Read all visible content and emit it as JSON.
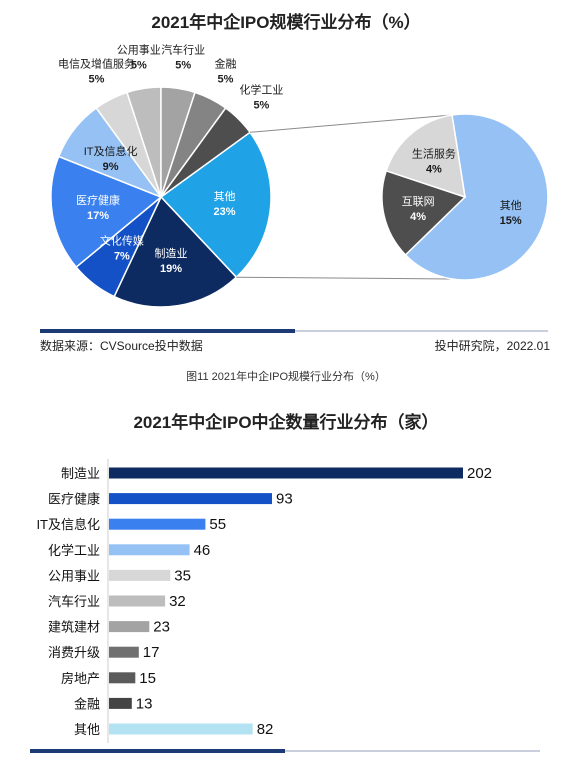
{
  "caption": "图11 2021年中企IPO规模行业分布（%）",
  "source": {
    "left": "数据来源：CVSource投中数据",
    "right": "投中研究院，2022.01"
  },
  "chart_data": [
    {
      "type": "pie",
      "title": "2021年中企IPO规模行业分布（%）",
      "slices": [
        {
          "label": "其他",
          "value": 23,
          "value_label": "23%",
          "color": "#1fa3e6"
        },
        {
          "label": "制造业",
          "value": 19,
          "value_label": "19%",
          "color": "#0d2b61"
        },
        {
          "label": "文化传媒",
          "value": 7,
          "value_label": "7%",
          "color": "#1451c7"
        },
        {
          "label": "医疗健康",
          "value": 17,
          "value_label": "17%",
          "color": "#3a80ee"
        },
        {
          "label": "IT及信息化",
          "value": 9,
          "value_label": "9%",
          "color": "#95c1f4"
        },
        {
          "label": "电信及增值服务",
          "value": 5,
          "value_label": "5%",
          "color": "#d7d7d7"
        },
        {
          "label": "公用事业",
          "value": 5,
          "value_label": "5%",
          "color": "#bdbdbd"
        },
        {
          "label": "汽车行业",
          "value": 5,
          "value_label": "5%",
          "color": "#a3a3a3"
        },
        {
          "label": "金融",
          "value": 5,
          "value_label": "5%",
          "color": "#848484"
        },
        {
          "label": "化学工业",
          "value": 5,
          "value_label": "5%",
          "color": "#4e4e4e"
        }
      ],
      "breakdown_of": "其他",
      "breakdown": [
        {
          "label": "其他",
          "value": 15,
          "value_label": "15%",
          "color": "#95c1f4"
        },
        {
          "label": "互联网",
          "value": 4,
          "value_label": "4%",
          "color": "#4e4e4e"
        },
        {
          "label": "生活服务",
          "value": 4,
          "value_label": "4%",
          "color": "#d7d7d7"
        }
      ]
    },
    {
      "type": "bar",
      "orientation": "horizontal",
      "title": "2021年中企IPO中企数量行业分布（家）",
      "categories": [
        "制造业",
        "医疗健康",
        "IT及信息化",
        "化学工业",
        "公用事业",
        "汽车行业",
        "建筑建材",
        "消费升级",
        "房地产",
        "金融",
        "其他"
      ],
      "values": [
        202,
        93,
        55,
        46,
        35,
        32,
        23,
        17,
        15,
        13,
        82
      ],
      "colors": [
        "#0d2b61",
        "#1451c7",
        "#3a80ee",
        "#95c1f4",
        "#d7d7d7",
        "#bdbdbd",
        "#a3a3a3",
        "#707070",
        "#5a5a5a",
        "#444444",
        "#b3e3f2"
      ]
    }
  ]
}
